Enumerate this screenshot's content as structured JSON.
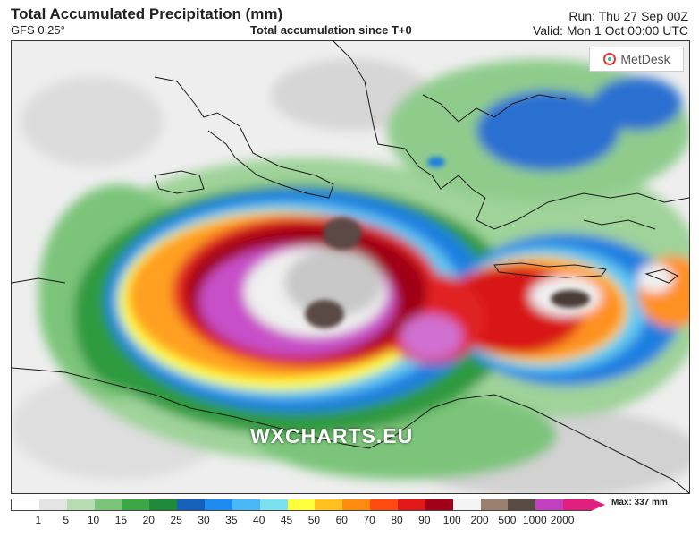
{
  "header": {
    "title": "Total Accumulated Precipitation (mm)",
    "model": "GFS 0.25°",
    "subtitle": "Total accumulation since T+0",
    "run": "Run: Thu 27 Sep 00Z",
    "valid": "Valid: Mon 1 Oct 00:00 UTC"
  },
  "logo": {
    "text": "MetDesk",
    "icon": "metdesk-logo-icon"
  },
  "watermark": "WXCHARTS.EU",
  "colorbar": {
    "max_label": "Max: 337 mm",
    "ticks": [
      "1",
      "5",
      "10",
      "15",
      "20",
      "25",
      "30",
      "35",
      "40",
      "45",
      "50",
      "60",
      "70",
      "80",
      "90",
      "100",
      "200",
      "500",
      "1000",
      "2000"
    ],
    "colors": [
      "#ffffff",
      "#e4e4e4",
      "#b7dcb1",
      "#7cc47a",
      "#3aa644",
      "#1f8a39",
      "#1560b8",
      "#1c8bf0",
      "#49b8f5",
      "#7be0f0",
      "#ffff3c",
      "#ffc020",
      "#ff8c10",
      "#ff4a10",
      "#e01818",
      "#a00018",
      "#f4f4f4",
      "#9a8070",
      "#5a4a44",
      "#c040c0",
      "#e0207f"
    ]
  }
}
